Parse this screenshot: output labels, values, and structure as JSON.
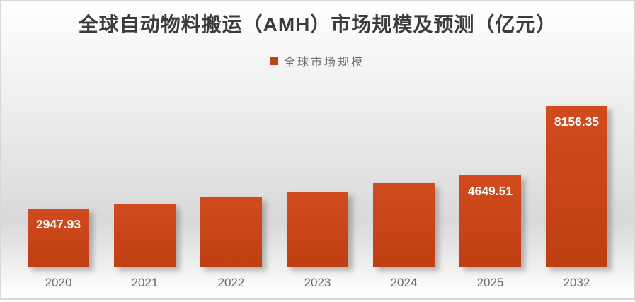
{
  "colors": {
    "bar_top": "#d14b1e",
    "bar_bottom": "#be3f12",
    "legend_swatch": "#bf4318",
    "title_text": "#3c3c3c",
    "axis_label_text": "#6a6a6a",
    "value_label_text": "#ffffff"
  },
  "chart_data": {
    "type": "bar",
    "title": "全球自动物料搬运（AMH）市场规模及预测（亿元）",
    "legend": {
      "label": "全球市场规模",
      "position": "top-center"
    },
    "categories": [
      "2020",
      "2021",
      "2022",
      "2023",
      "2024",
      "2025",
      "2032"
    ],
    "series": [
      {
        "name": "全球市场规模",
        "values": [
          2947.93,
          3215,
          3535,
          3820,
          4250,
          4649.51,
          8156.35
        ]
      }
    ],
    "data_labels": [
      "2947.93",
      "",
      "",
      "",
      "",
      "4649.51",
      "8156.35"
    ],
    "ylim": [
      0,
      8600
    ],
    "grid": false,
    "y_axis_visible": false
  }
}
